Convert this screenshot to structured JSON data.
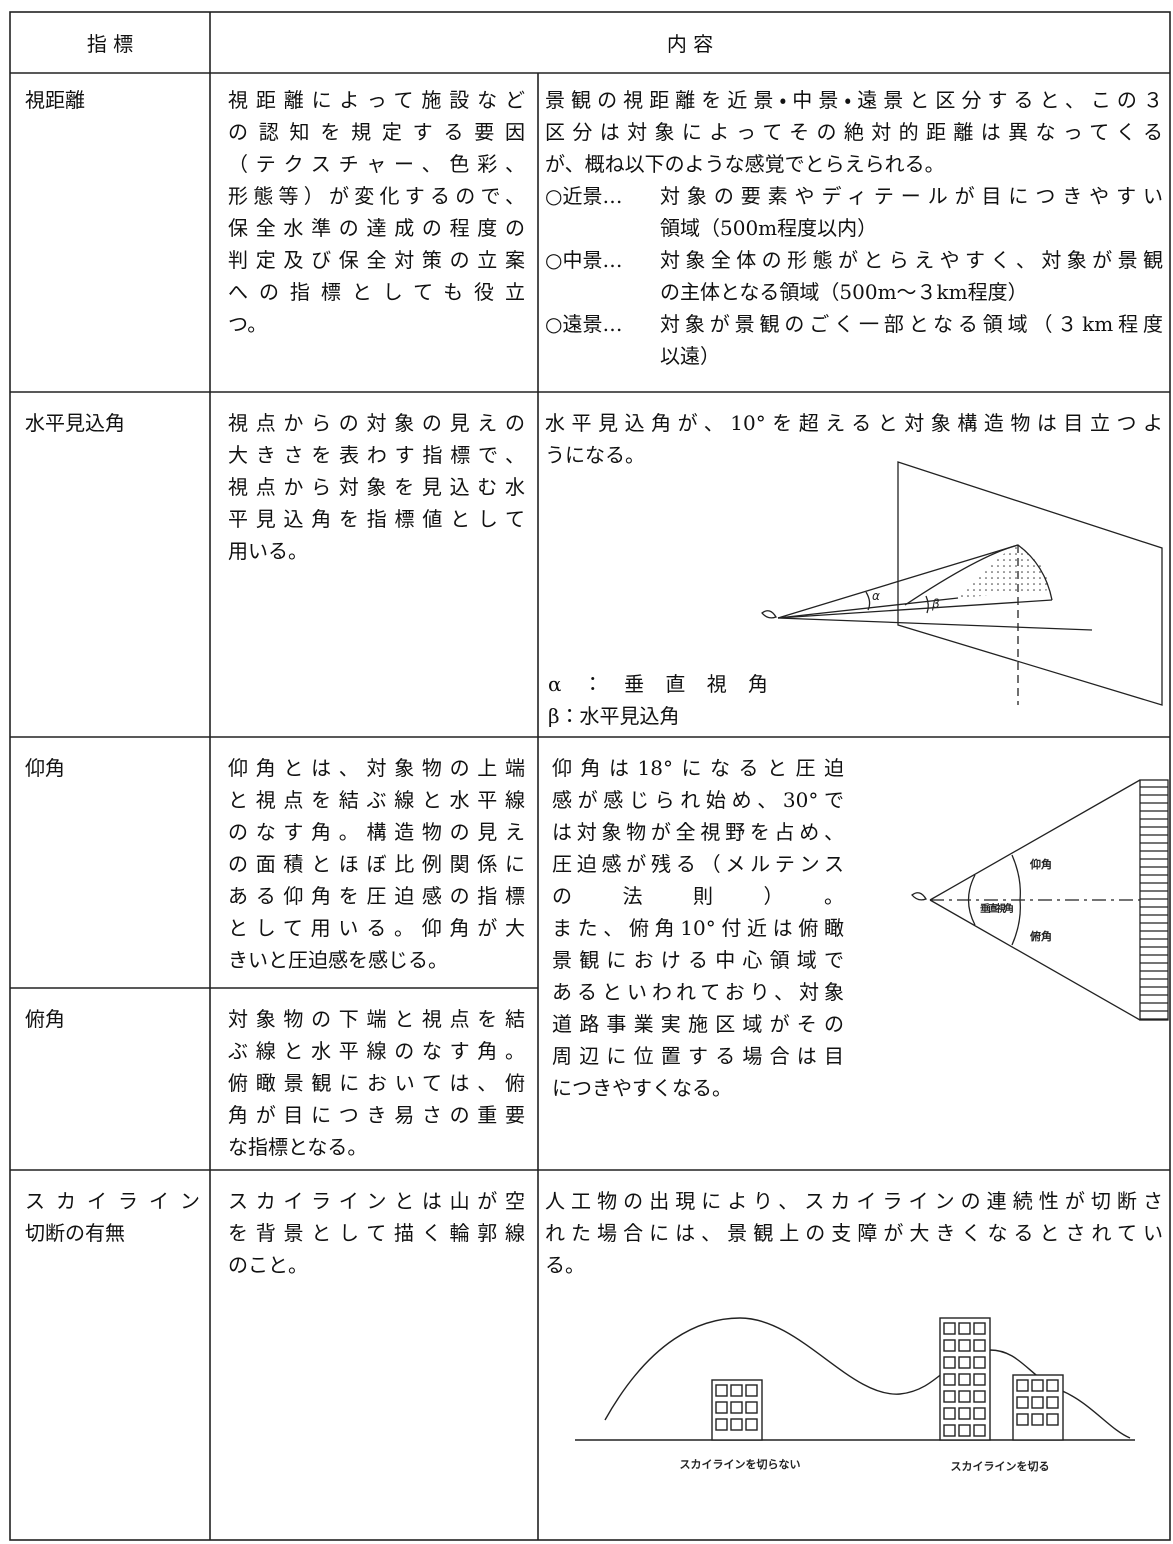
{
  "header": {
    "indicator": "指 標",
    "content": "内 容"
  },
  "rows": [
    {
      "indicator": [
        "視距離"
      ],
      "description": [
        "視距離によって施設など",
        "の認知を規定する要因",
        "（テクスチャー、色彩、",
        "形態等）が変化するので、",
        "保全水準の達成の程度の",
        "判定及び保全対策の立案",
        "への指標としても役立",
        "つ。"
      ],
      "content": [
        "景観の視距離を近景・中景・遠景と区分すると、この３",
        "区分は対象によってその絶対的距離は異なってくる",
        "が、概ね以下のような感覚でとらえられる。"
      ],
      "items": [
        {
          "label": "○近景…",
          "lines": [
            "対象の要素やディテールが目につきやすい",
            "領域（500m程度以内）"
          ]
        },
        {
          "label": "○中景…",
          "lines": [
            "対象全体の形態がとらえやすく、対象が景観",
            "の主体となる領域（500m～３km程度）"
          ]
        },
        {
          "label": "○遠景…",
          "lines": [
            "対象が景観のごく一部となる領域（３km程度",
            "以遠）"
          ]
        }
      ]
    },
    {
      "indicator": [
        "水平見込角"
      ],
      "description": [
        "視点からの対象の見えの",
        "大きさを表わす指標で、",
        "視点から対象を見込む水",
        "平見込角を指標値として",
        "用いる。"
      ],
      "content": [
        "水平見込角が、10°を超えると対象構造物は目立つよ",
        "うになる。"
      ],
      "diagram": {
        "alpha": "α",
        "beta": "β"
      },
      "legend": [
        "α：垂直視角",
        "β：水平見込角"
      ]
    },
    {
      "indicator": [
        "仰角"
      ],
      "description": [
        "仰角とは、対象物の上端",
        "と視点を結ぶ線と水平線",
        "のなす角。構造物の見え",
        "の面積とほぼ比例関係に",
        "ある仰角を圧迫感の指標",
        "として用いる。仰角が大",
        "きいと圧迫感を感じる。"
      ]
    },
    {
      "indicator": [
        "俯角"
      ],
      "description": [
        "対象物の下端と視点を結",
        "ぶ線と水平線のなす角。",
        "俯瞰景観においては、俯",
        "角が目につき易さの重要",
        "な指標となる。"
      ]
    },
    {
      "indicator": [
        "スカイライン",
        "切断の有無"
      ],
      "description": [
        "スカイラインとは山が空",
        "を背景として描く輪郭線",
        "のこと。"
      ],
      "content": [
        "人工物の出現により、スカイラインの連続性が切断さ",
        "れた場合には、景観上の支障が大きくなるとされてい",
        "る。"
      ],
      "diagram": {
        "uncut": "スカイラインを切らない",
        "cut": "スカイラインを切る"
      }
    }
  ],
  "angle_content": {
    "lines": [
      "仰角は18°になると圧迫",
      "感が感じられ始め、30°で",
      "は対象物が全視野を占め、",
      "圧迫感が残る（メルテンス",
      "の法則）。",
      "また、俯角10°付近は俯瞰",
      "景観における中心領域で",
      "あるといわれており、対象",
      "道路事業実施区域がその",
      "周辺に位置する場合は目",
      "につきやすくなる。"
    ],
    "diagram": {
      "elevation": "仰角",
      "vertical": "垂直視角",
      "depression": "俯角"
    }
  }
}
